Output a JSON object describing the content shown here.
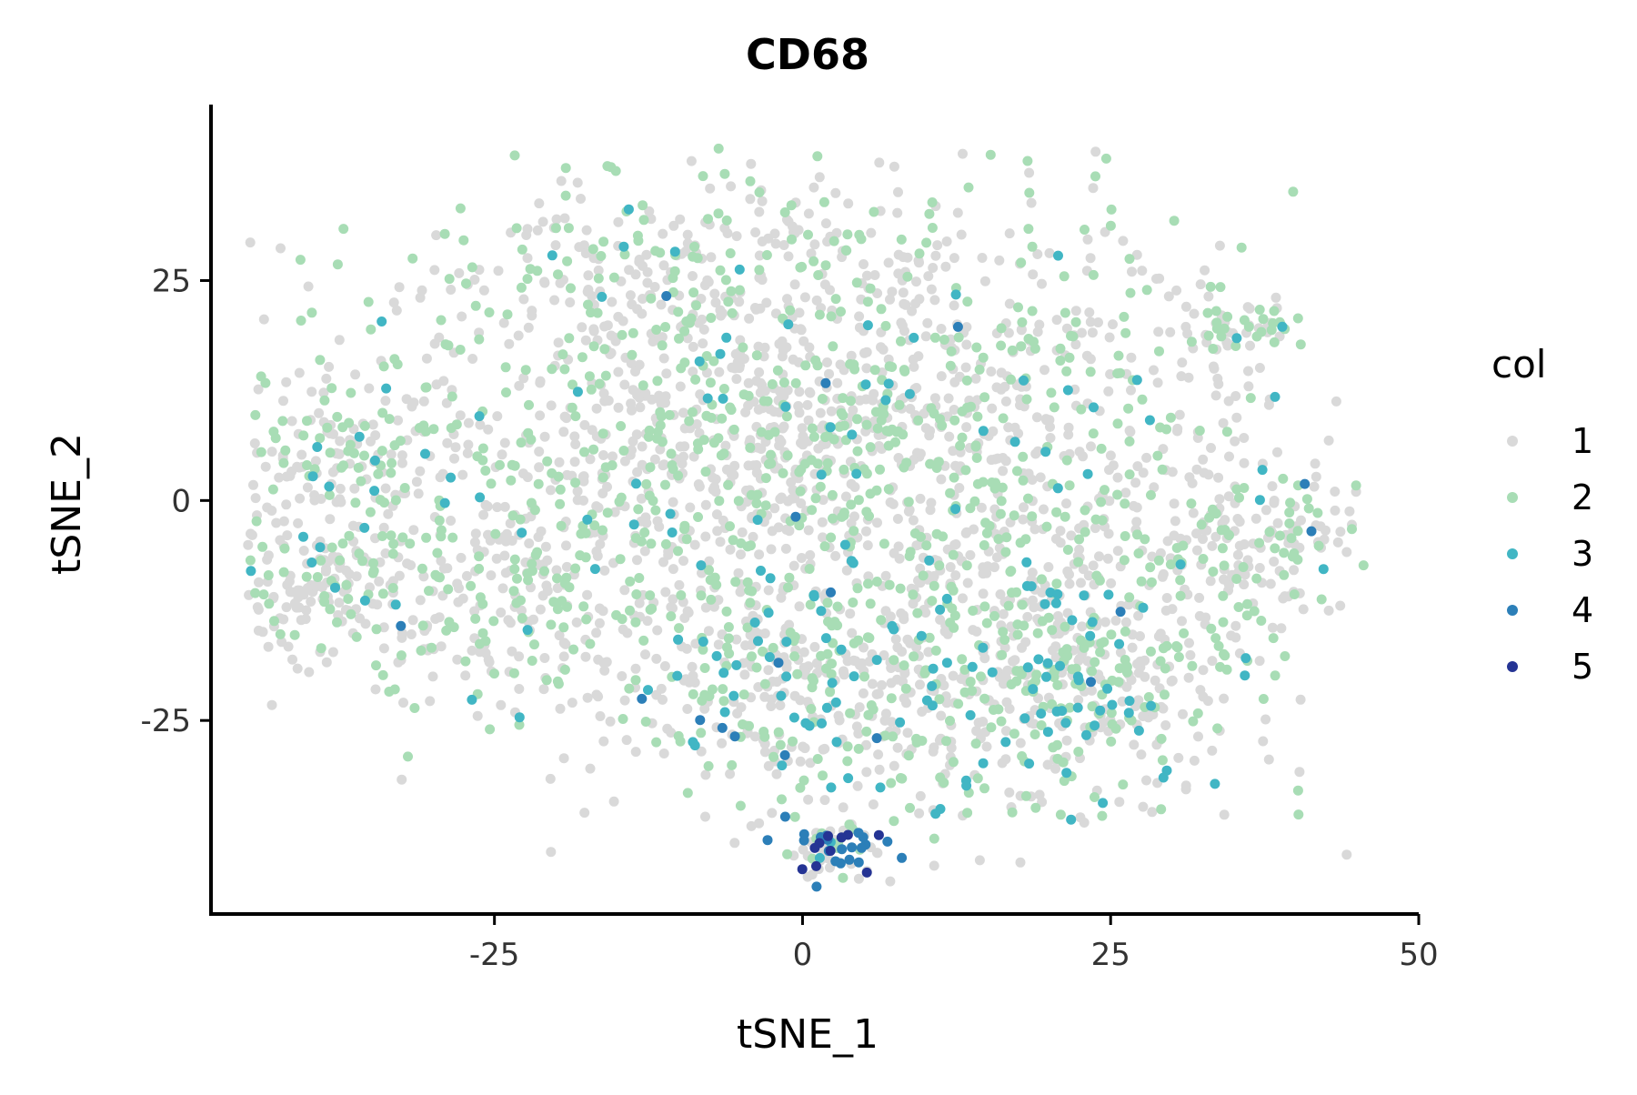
{
  "chart_data": {
    "type": "scatter",
    "title": "CD68",
    "xlabel": "tSNE_1",
    "ylabel": "tSNE_2",
    "xlim": [
      -48,
      50
    ],
    "ylim": [
      -47,
      45
    ],
    "x_ticks": [
      -25,
      0,
      25,
      50
    ],
    "y_ticks": [
      -25,
      0,
      25
    ],
    "x_tick_labels": [
      "-25",
      "0",
      "25",
      "50"
    ],
    "y_tick_labels": [
      "-25",
      "0",
      "25"
    ],
    "grid": false,
    "legend": {
      "title": "col",
      "placement": "right",
      "entries": [
        {
          "label": "1",
          "color": "#d9d9d9"
        },
        {
          "label": "2",
          "color": "#a8ddb5"
        },
        {
          "label": "3",
          "color": "#41b6c4"
        },
        {
          "label": "4",
          "color": "#2c7fb8"
        },
        {
          "label": "5",
          "color": "#253494"
        }
      ]
    },
    "points_note_counts": {
      "1": 2200,
      "2": 1150,
      "3": 190,
      "4": 38,
      "5": 10
    },
    "point_regions": [
      {
        "cx": -5,
        "cy": 10,
        "rx": 28,
        "ry": 22,
        "weight": 0.3
      },
      {
        "cx": 12,
        "cy": 2,
        "rx": 26,
        "ry": 30,
        "weight": 0.22
      },
      {
        "cx": -38,
        "cy": 5,
        "rx": 8,
        "ry": 9,
        "weight": 0.05
      },
      {
        "cx": -39,
        "cy": -10,
        "rx": 7,
        "ry": 8,
        "weight": 0.05
      },
      {
        "cx": -22,
        "cy": -10,
        "rx": 14,
        "ry": 14,
        "weight": 0.08
      },
      {
        "cx": 35,
        "cy": 20,
        "rx": 5,
        "ry": 3,
        "weight": 0.02
      },
      {
        "cx": 37,
        "cy": -5,
        "rx": 9,
        "ry": 7,
        "weight": 0.05
      },
      {
        "cx": 22,
        "cy": -20,
        "rx": 12,
        "ry": 13,
        "weight": 0.1
      },
      {
        "cx": 0,
        "cy": -22,
        "rx": 14,
        "ry": 12,
        "weight": 0.09
      },
      {
        "cx": 3,
        "cy": -40,
        "rx": 4,
        "ry": 3,
        "weight": 0.01
      },
      {
        "cx": -10,
        "cy": 28,
        "rx": 20,
        "ry": 7,
        "weight": 0.03
      }
    ]
  }
}
